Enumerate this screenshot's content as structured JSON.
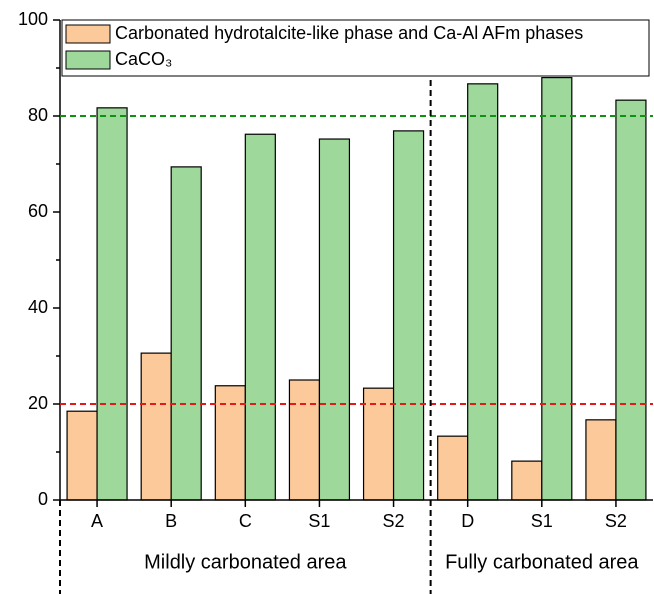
{
  "chart_data": {
    "type": "bar",
    "categories": [
      "A",
      "B",
      "C",
      "S1",
      "S2",
      "D",
      "S1",
      "S2"
    ],
    "series": [
      {
        "name": "Carbonated hydrotalcite-like phase and Ca-Al AFm phases",
        "color": "#fcc99a",
        "values": [
          18.5,
          30.6,
          23.8,
          25.0,
          23.3,
          13.3,
          8.1,
          16.7
        ]
      },
      {
        "name": "CaCO₃",
        "color": "#9ed89b",
        "values": [
          81.7,
          69.4,
          76.2,
          75.2,
          76.9,
          86.7,
          88.0,
          83.3
        ]
      }
    ],
    "ylim": [
      0,
      100
    ],
    "yticks": [
      0,
      20,
      40,
      60,
      80,
      100
    ],
    "hlines": [
      {
        "value": 80,
        "color": "#119111"
      },
      {
        "value": 20,
        "color": "#e61919"
      }
    ],
    "groups": [
      {
        "label": "Mildly carbonated area",
        "count": 5
      },
      {
        "label": "Fully carbonated area",
        "count": 3
      }
    ],
    "legend": "top"
  }
}
